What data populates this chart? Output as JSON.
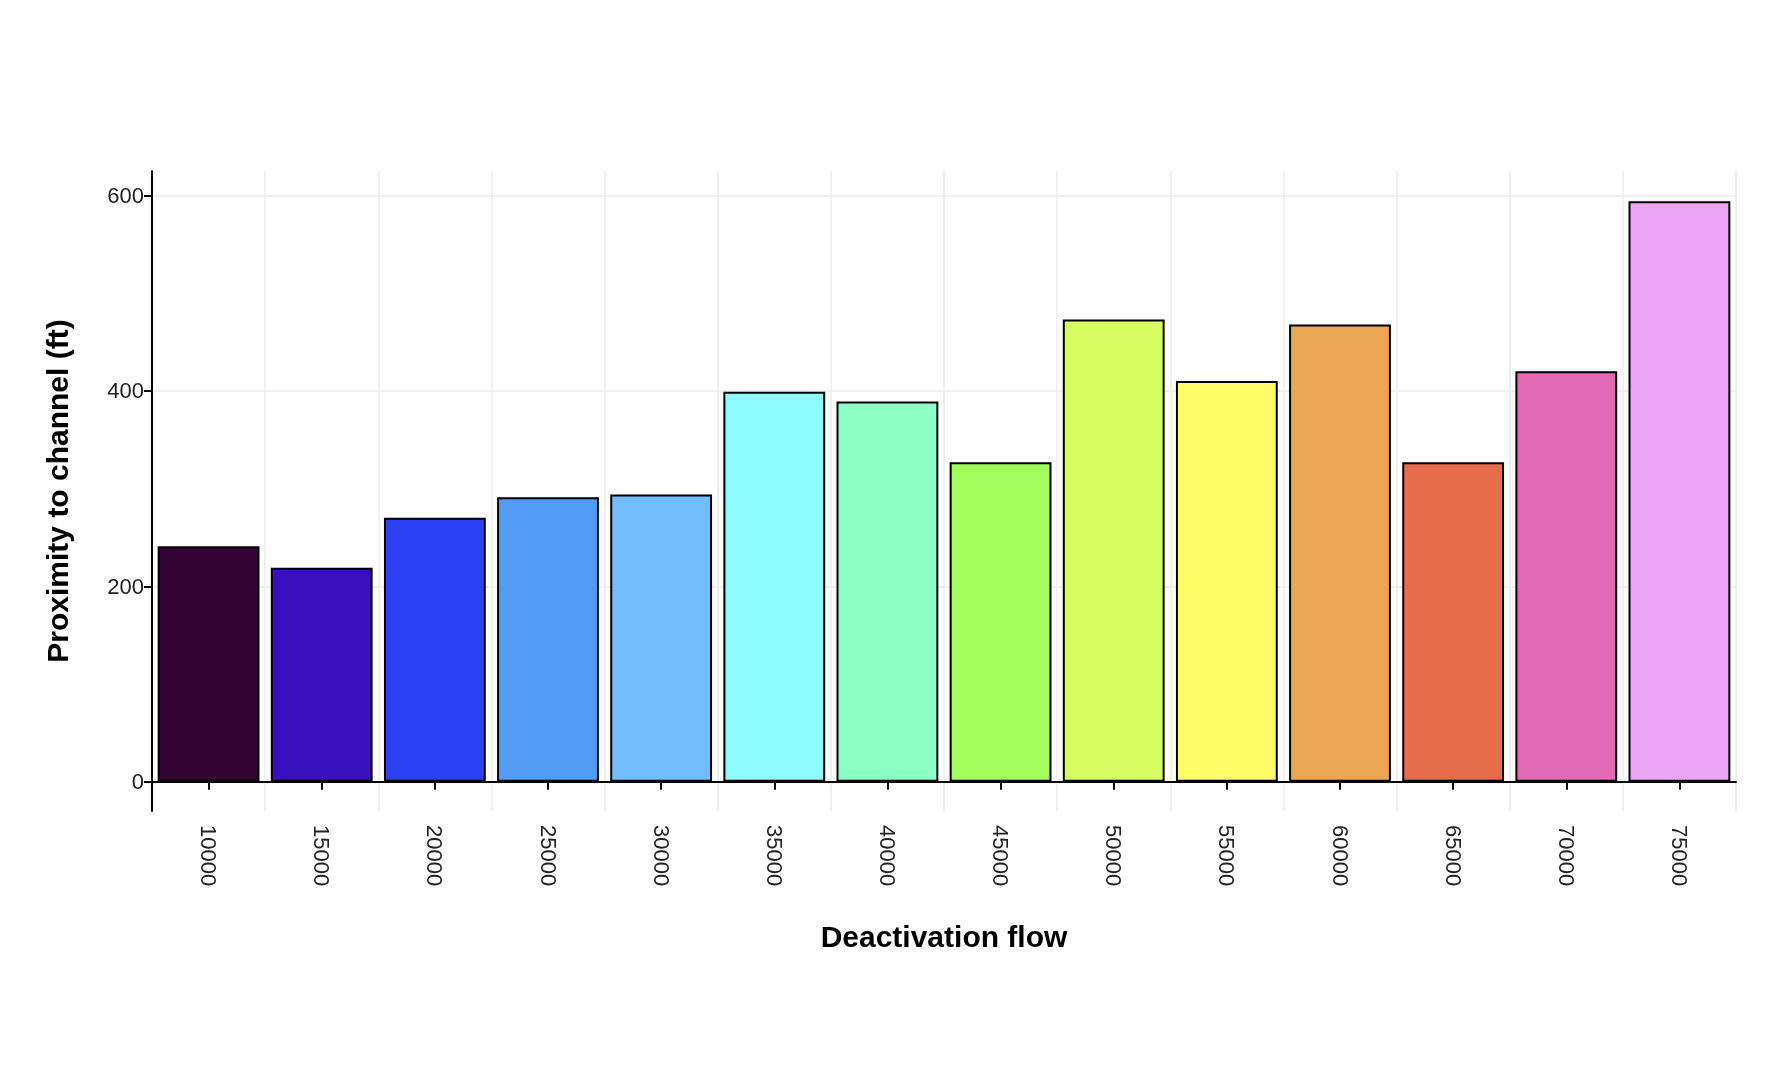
{
  "chart_data": {
    "type": "bar",
    "xlabel": "Deactivation flow",
    "ylabel": "Proximity to channel (ft)",
    "categories": [
      "10000",
      "15000",
      "20000",
      "25000",
      "30000",
      "35000",
      "40000",
      "45000",
      "50000",
      "55000",
      "60000",
      "65000",
      "70000",
      "75000"
    ],
    "values": [
      241,
      219,
      270,
      291,
      294,
      399,
      389,
      327,
      473,
      410,
      468,
      327,
      420,
      594
    ],
    "colors": [
      "#330433",
      "#3a0fbd",
      "#2b41f5",
      "#529cf5",
      "#72bdfb",
      "#8efcfd",
      "#8cfec6",
      "#a2fc5c",
      "#d5fc61",
      "#fefd69",
      "#eba655",
      "#e66c4b",
      "#e36ab7",
      "#eea4f7"
    ],
    "ylim": [
      -30,
      625
    ],
    "yticks": [
      0,
      200,
      400,
      600
    ],
    "grid": true
  }
}
